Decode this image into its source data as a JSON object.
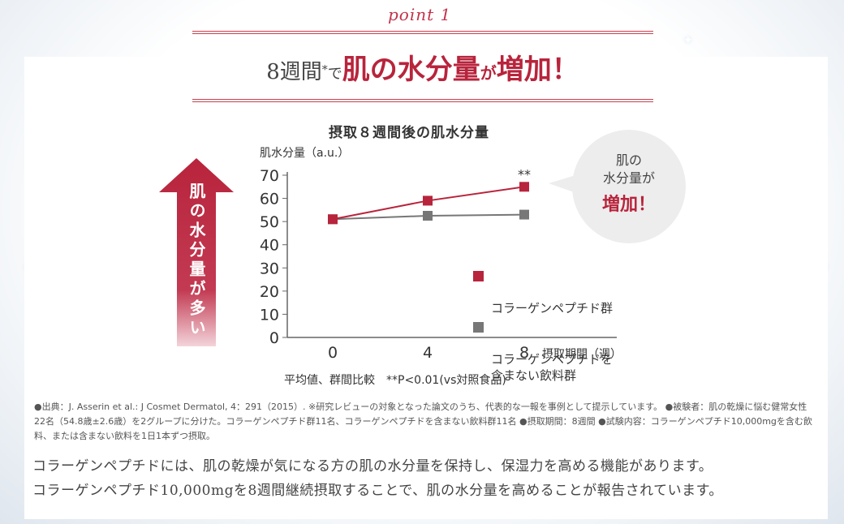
{
  "header": {
    "point_label": "point",
    "point_number": "1",
    "headline_part1": "8週間",
    "headline_star": "*",
    "headline_part2": "で",
    "headline_part3": "肌の水分量",
    "headline_part4": "が",
    "headline_part5": "増加！"
  },
  "arrow": {
    "text": "肌の水分量が多い",
    "color": "#b8243c"
  },
  "bubble": {
    "line1": "肌の",
    "line2": "水分量が",
    "line3": "増加！"
  },
  "chart_data": {
    "type": "line",
    "title": "摂取８週間後の肌水分量",
    "ylabel": "肌水分量（a.u.）",
    "xlabel": "摂取期間（週）",
    "x": [
      0,
      4,
      8
    ],
    "x_tick_labels": [
      "0",
      "4",
      "8"
    ],
    "y_ticks": [
      0,
      10,
      20,
      30,
      40,
      50,
      60,
      70
    ],
    "ylim": [
      0,
      70
    ],
    "grid": false,
    "legend_position": "right",
    "series": [
      {
        "name": "コラーゲンペプチド群",
        "values": [
          51,
          59,
          65
        ],
        "color": "#b8243c"
      },
      {
        "name": "コラーゲンペプチドを\n含まない飲料群",
        "values": [
          51,
          52.5,
          53
        ],
        "color": "#777777"
      }
    ],
    "annotations": [
      {
        "x": 8,
        "text": "**"
      }
    ]
  },
  "footnote": "平均値、群間比較　**P<0.01(vs対照食品)",
  "source": "●出典：J. Asserin et al.: J Cosmet Dermatol, 4：291（2015）. ※研究レビューの対象となった論文のうち、代表的な一報を事例として提示しています。 ●被験者：肌の乾燥に悩む健常女性22名（54.8歳±2.6歳）を2グループに分けた。コラーゲンペプチド群11名、コラーゲンペプチドを含まない飲料群11名 ●摂取期間：8週間 ●試験内容：コラーゲンペプチド10,000mgを含む飲料、または含まない飲料を1日1本ずつ摂取。",
  "body": {
    "line1": "コラーゲンペプチドには、肌の乾燥が気になる方の肌の水分量を保持し、保湿力を高める機能があります。",
    "line2": "コラーゲンペプチド10,000mgを8週間継続摂取することで、肌の水分量を高めることが報告されています。"
  }
}
